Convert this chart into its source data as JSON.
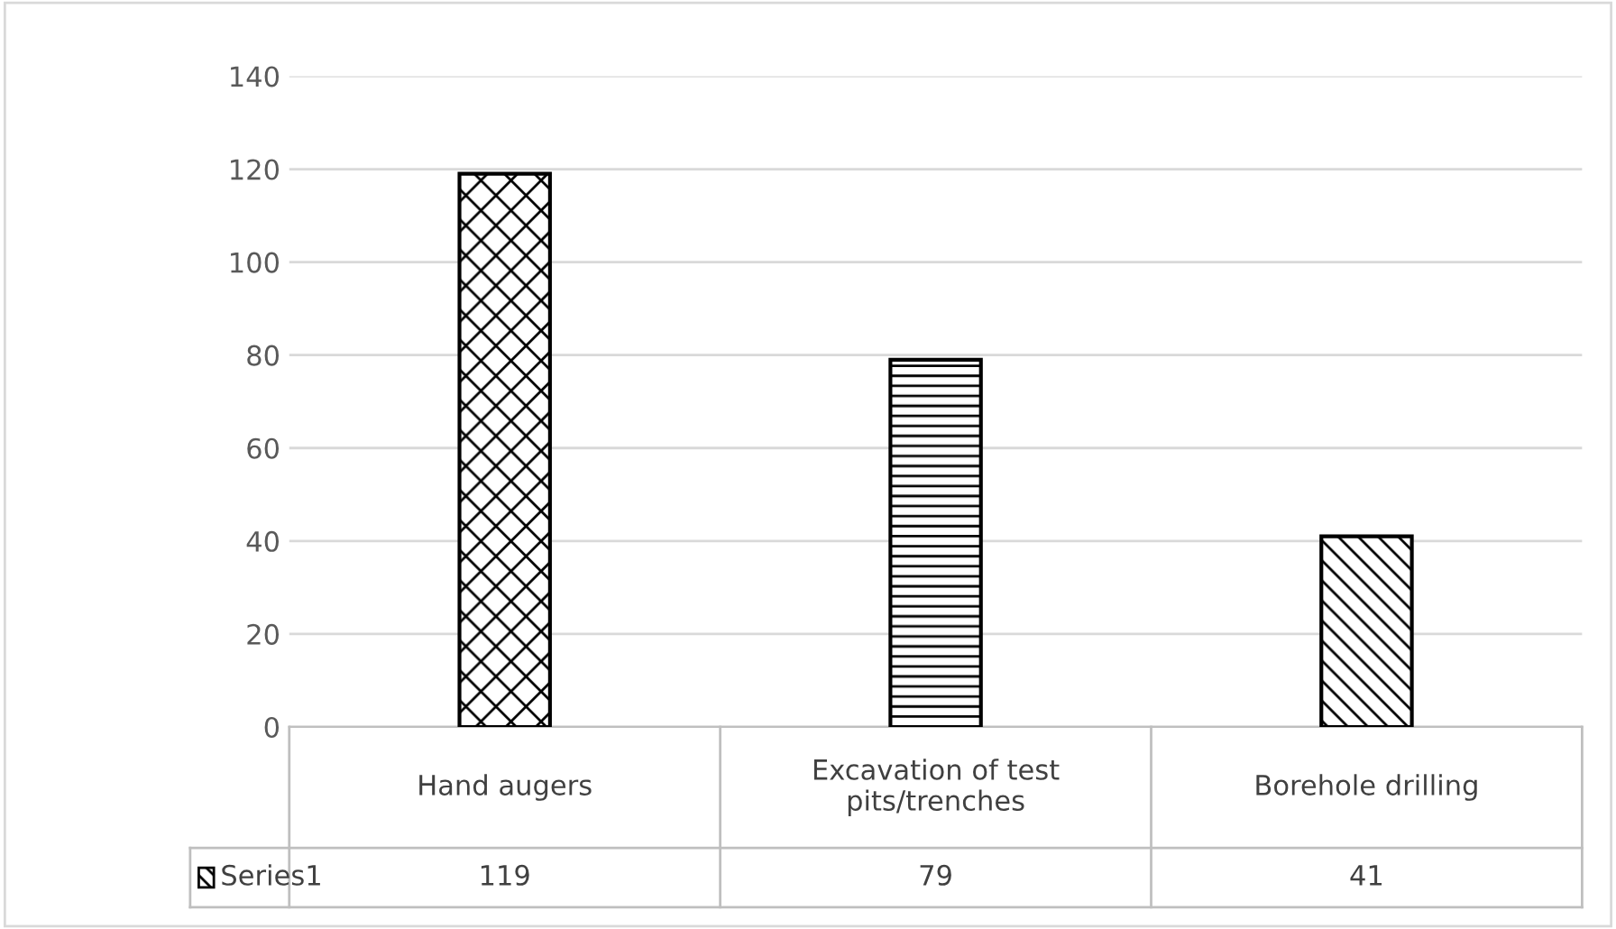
{
  "chart_data": {
    "type": "bar",
    "categories": [
      "Hand augers",
      "Excavation of test\npits/trenches",
      "Borehole drilling"
    ],
    "series": [
      {
        "name": "Series1",
        "color": "#000000",
        "values": [
          119,
          79,
          41
        ]
      }
    ],
    "ylim": [
      0,
      140
    ],
    "yticks": [
      0,
      20,
      40,
      60,
      80,
      100,
      120,
      140
    ],
    "grid": "y",
    "data_labels": true,
    "legend": false
  }
}
